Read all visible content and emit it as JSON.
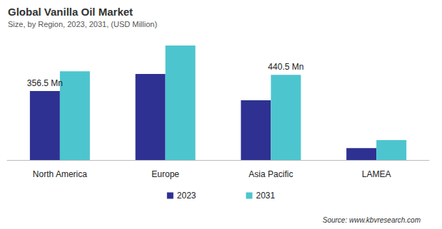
{
  "chart_data": {
    "type": "bar",
    "title": "Global Vanilla Oil Market",
    "subtitle": "Size, by Region, 2023, 2031, (USD Million)",
    "categories": [
      "North America",
      "Europe",
      "Asia Pacific",
      "LAMEA"
    ],
    "series": [
      {
        "name": "2023",
        "color": "#2e3192",
        "values": [
          356.5,
          445,
          309,
          62
        ],
        "value_labels": [
          "356.5 Mn",
          null,
          null,
          null
        ]
      },
      {
        "name": "2031",
        "color": "#4dc5cf",
        "values": [
          459,
          592,
          440.5,
          103
        ],
        "value_labels": [
          null,
          null,
          "440.5 Mn",
          null
        ]
      }
    ],
    "data_labels": true,
    "grid": false,
    "legend": "bottom",
    "tick_labels": "x",
    "annotations": [
      "Source: www.kbvresearch.com"
    ]
  }
}
